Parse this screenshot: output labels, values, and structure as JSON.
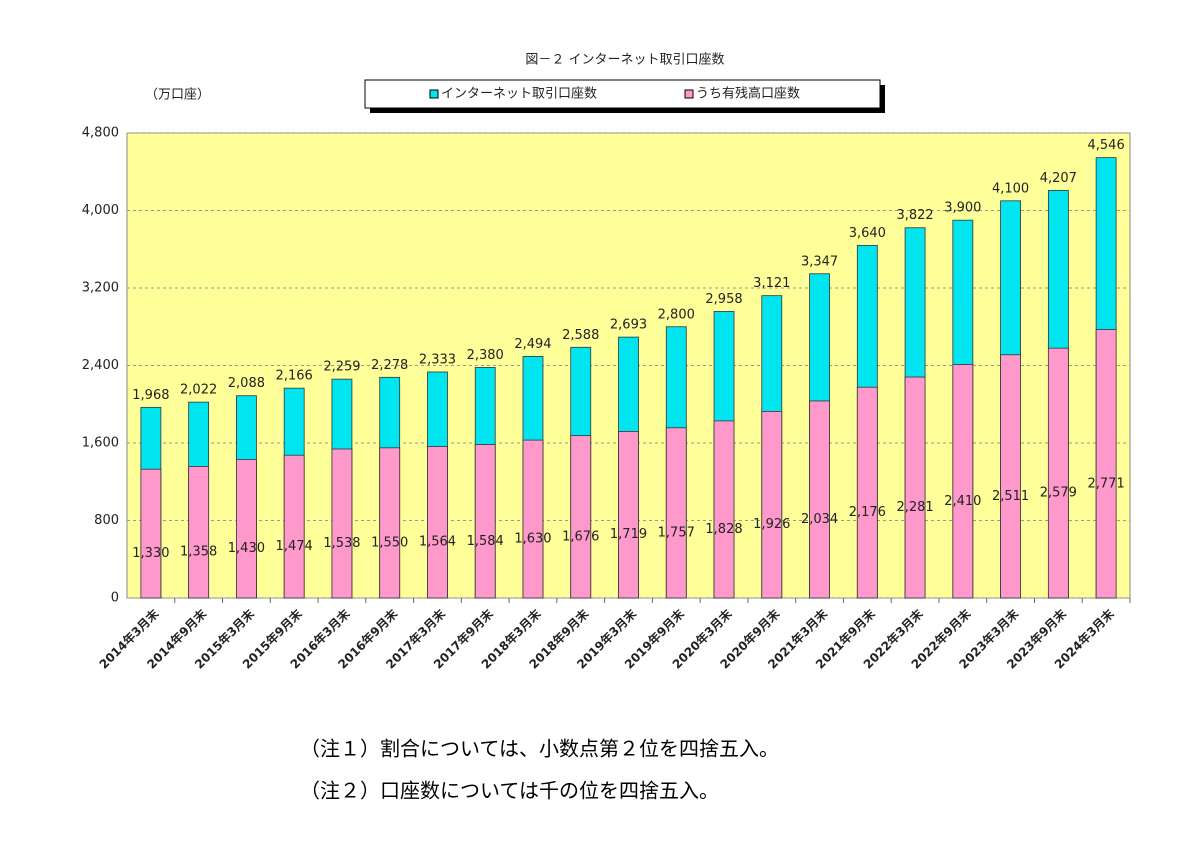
{
  "chart_data": {
    "type": "overlap_bar",
    "title": "図－２ インターネット取引口座数",
    "y_label": "（万口座）",
    "categories": [
      "2014年3月末",
      "2014年9月末",
      "2015年3月末",
      "2015年9月末",
      "2016年3月末",
      "2016年9月末",
      "2017年3月末",
      "2017年9月末",
      "2018年3月末",
      "2018年9月末",
      "2019年3月末",
      "2019年9月末",
      "2020年3月末",
      "2020年9月末",
      "2021年3月末",
      "2021年9月末",
      "2022年3月末",
      "2022年9月末",
      "2023年3月末",
      "2023年9月末",
      "2024年3月末"
    ],
    "series": [
      {
        "name": "インターネット取引口座数",
        "color": "#00e5f0",
        "values": [
          1968,
          2022,
          2088,
          2166,
          2259,
          2278,
          2333,
          2380,
          2494,
          2588,
          2693,
          2800,
          2958,
          3121,
          3347,
          3640,
          3822,
          3900,
          4100,
          4207,
          4546
        ],
        "value_labels": [
          "1,968",
          "2,022",
          "2,088",
          "2,166",
          "2,259",
          "2,278",
          "2,333",
          "2,380",
          "2,494",
          "2,588",
          "2,693",
          "2,800",
          "2,958",
          "3,121",
          "3,347",
          "3,640",
          "3,822",
          "3,900",
          "4,100",
          "4,207",
          "4,546"
        ]
      },
      {
        "name": "うち有残高口座数",
        "color": "#ff99cc",
        "values": [
          1330,
          1358,
          1430,
          1474,
          1538,
          1550,
          1564,
          1584,
          1630,
          1676,
          1719,
          1757,
          1828,
          1926,
          2034,
          2176,
          2281,
          2410,
          2511,
          2579,
          2771
        ],
        "value_labels": [
          "1,330",
          "1,358",
          "1,430",
          "1,474",
          "1,538",
          "1,550",
          "1,564",
          "1,584",
          "1,630",
          "1,676",
          "1,719",
          "1,757",
          "1,828",
          "1,926",
          "2,034",
          "2,176",
          "2,281",
          "2,410",
          "2,511",
          "2,579",
          "2,771"
        ]
      }
    ],
    "ylim": [
      0,
      4800
    ],
    "yticks": [
      0,
      {
        "value": 800,
        "label": "800"
      },
      {
        "value": 1600,
        "label": "1,600"
      },
      {
        "value": 2400,
        "label": "2,400"
      },
      {
        "value": 3200,
        "label": "3,200"
      },
      {
        "value": 4000,
        "label": "4,000"
      },
      {
        "value": 4800,
        "label": "4,800"
      }
    ],
    "grid": true,
    "notes": [
      "（注１）割合については、小数点第２位を四捨五入。",
      "（注２）口座数については千の位を四捨五入。"
    ]
  }
}
